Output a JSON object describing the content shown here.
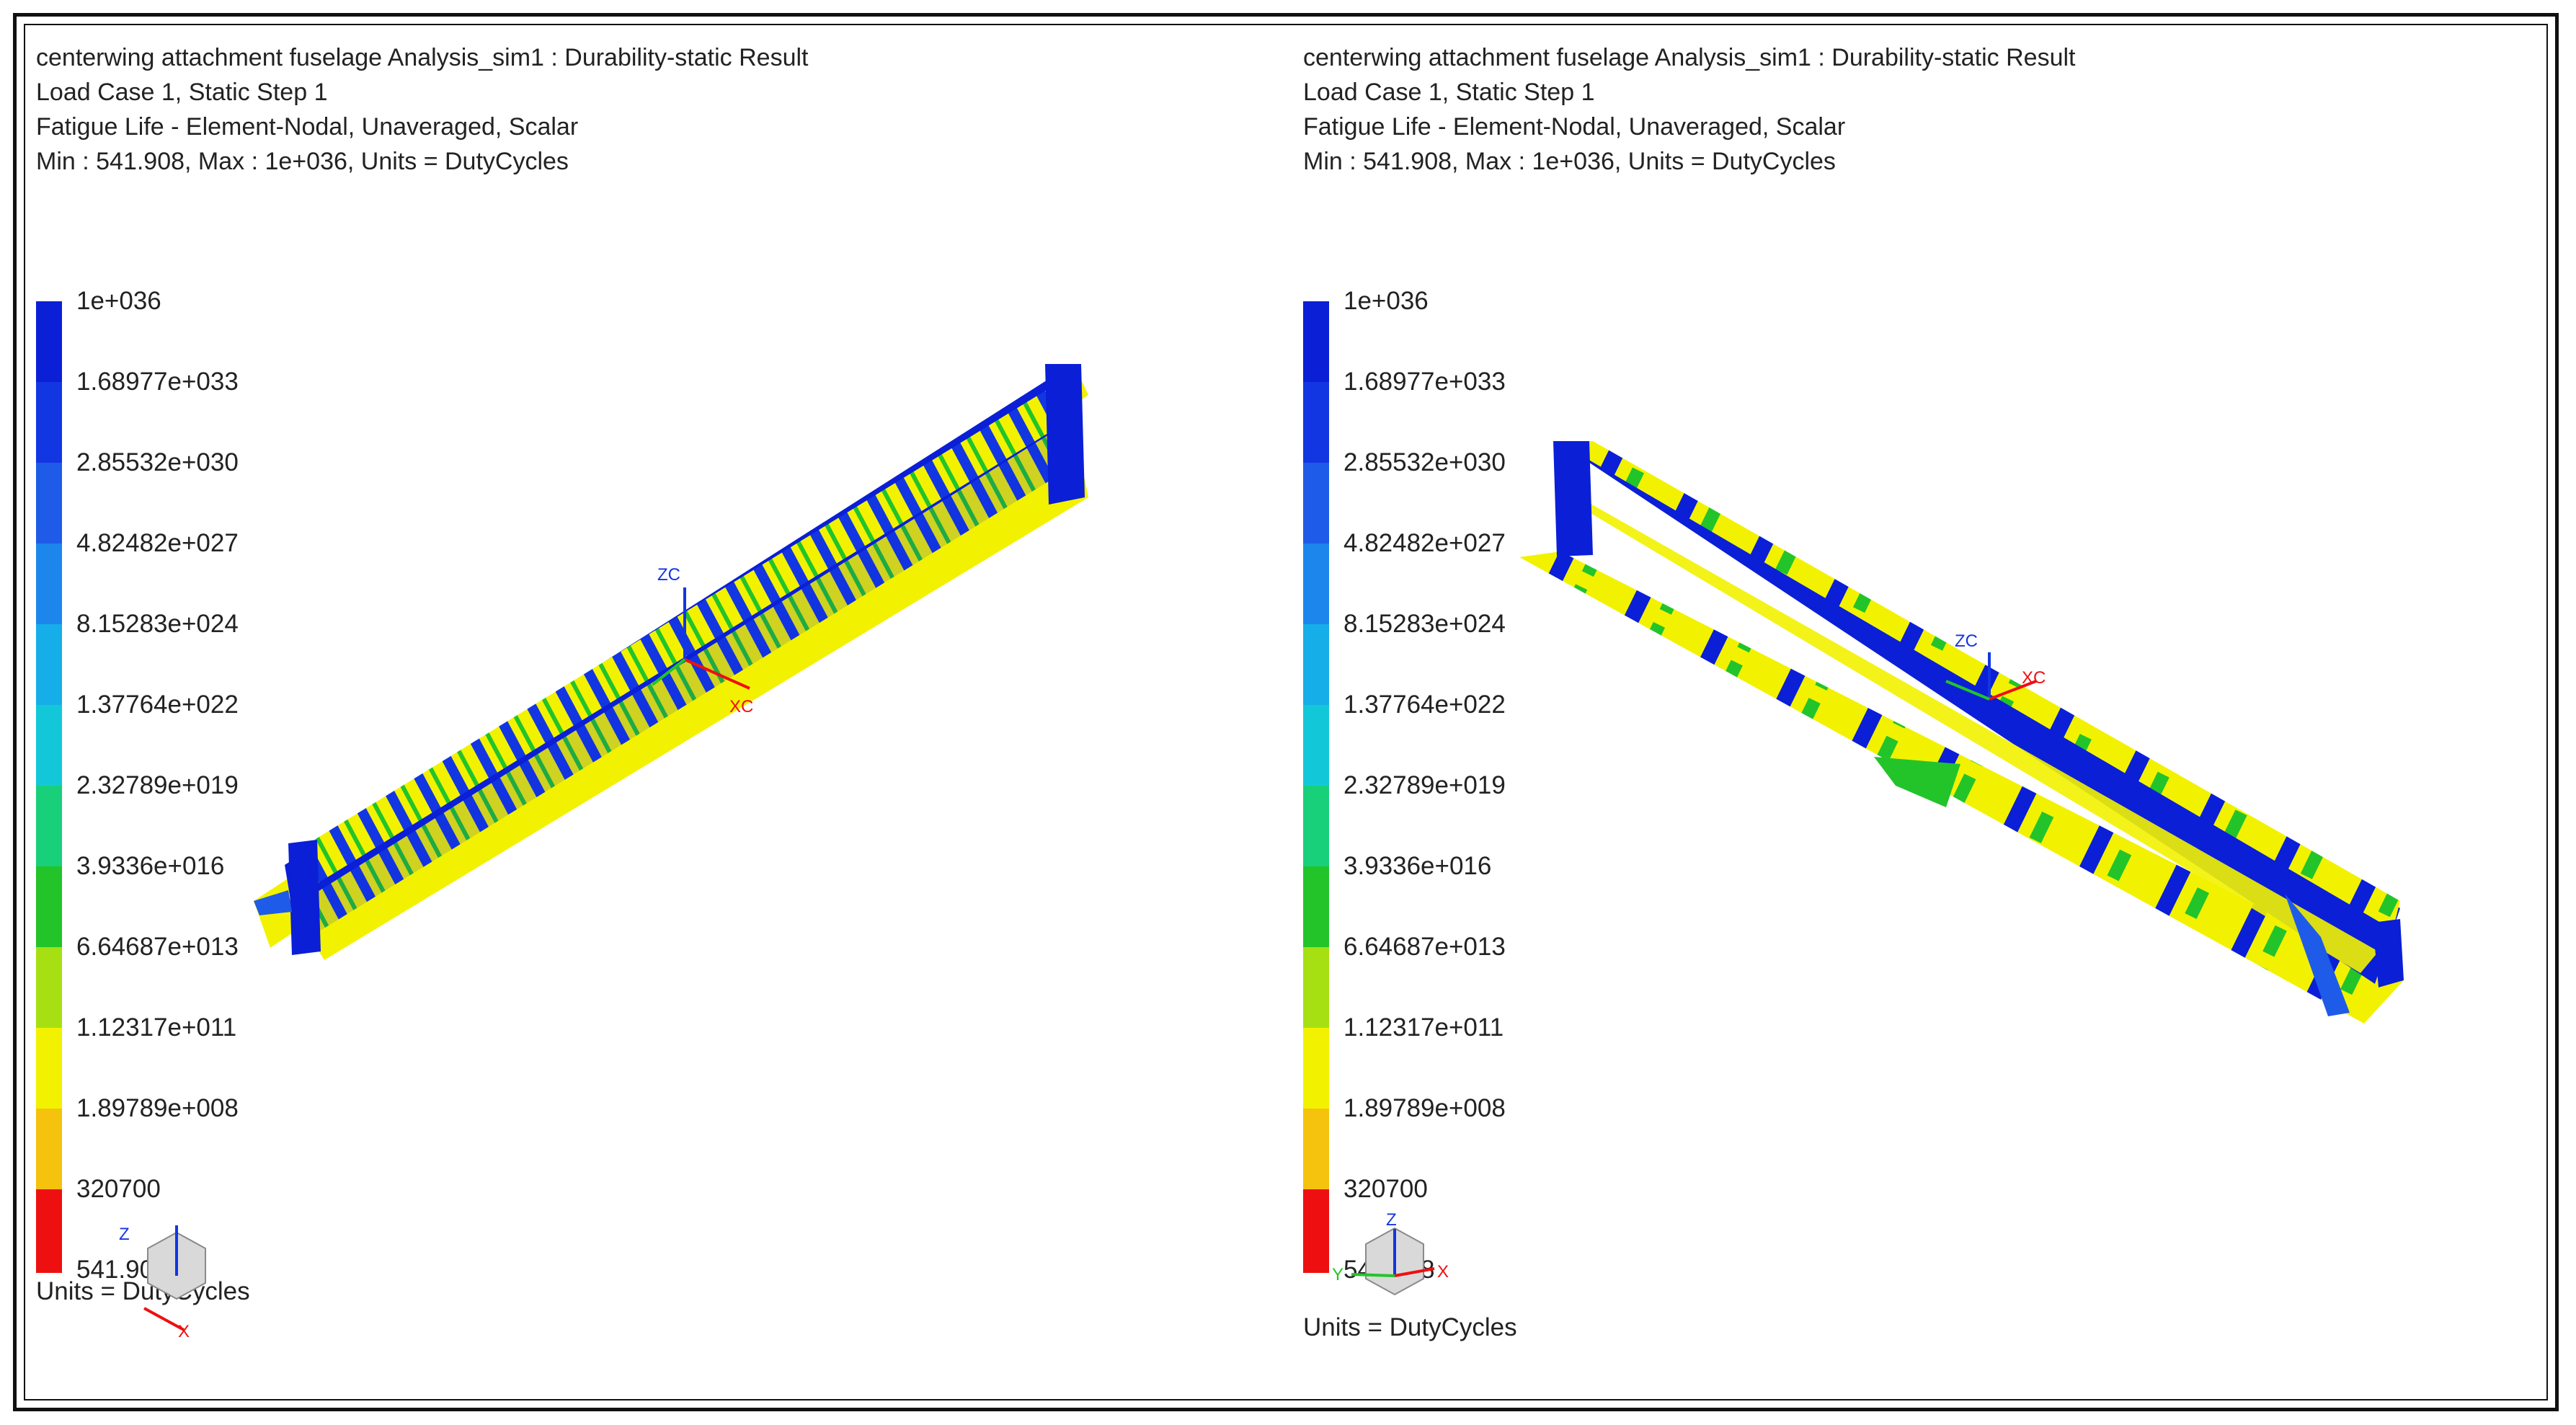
{
  "viewports": [
    {
      "header": [
        "centerwing attachment fuselage Analysis_sim1 : Durability-static Result",
        "Load Case 1, Static Step 1",
        "Fatigue Life - Element-Nodal, Unaveraged, Scalar",
        "Min : 541.908, Max : 1e+036, Units = DutyCycles"
      ],
      "legend_ticks": [
        "1e+036",
        "1.68977e+033",
        "2.85532e+030",
        "4.82482e+027",
        "8.15283e+024",
        "1.37764e+022",
        "2.32789e+019",
        "3.9336e+016",
        "6.64687e+013",
        "1.12317e+011",
        "1.89789e+008",
        "320700",
        "541.908"
      ],
      "units": "Units = DutyCycles",
      "triad_labels": {
        "zc": "ZC",
        "xc": "XC"
      },
      "mini_triad_labels": {
        "z": "Z",
        "x": "X"
      }
    },
    {
      "header": [
        "centerwing attachment fuselage Analysis_sim1 : Durability-static Result",
        "Load Case 1, Static Step 1",
        "Fatigue Life - Element-Nodal, Unaveraged, Scalar",
        "Min : 541.908, Max : 1e+036, Units = DutyCycles"
      ],
      "legend_ticks": [
        "1e+036",
        "1.68977e+033",
        "2.85532e+030",
        "4.82482e+027",
        "8.15283e+024",
        "1.37764e+022",
        "2.32789e+019",
        "3.9336e+016",
        "6.64687e+013",
        "1.12317e+011",
        "1.89789e+008",
        "320700",
        "541.908"
      ],
      "units": "Units = DutyCycles",
      "triad_labels": {
        "zc": "ZC",
        "xc": "XC"
      },
      "mini_triad_labels": {
        "z": "Z",
        "x": "X",
        "y": "Y"
      }
    }
  ],
  "colors": {
    "max_life": "#0a1fd6",
    "high_blue": "#1e5be8",
    "cyan": "#12c8e8",
    "green": "#22c42a",
    "yellow": "#f2f200",
    "orange": "#f09a10",
    "min_life": "#ee1010"
  }
}
